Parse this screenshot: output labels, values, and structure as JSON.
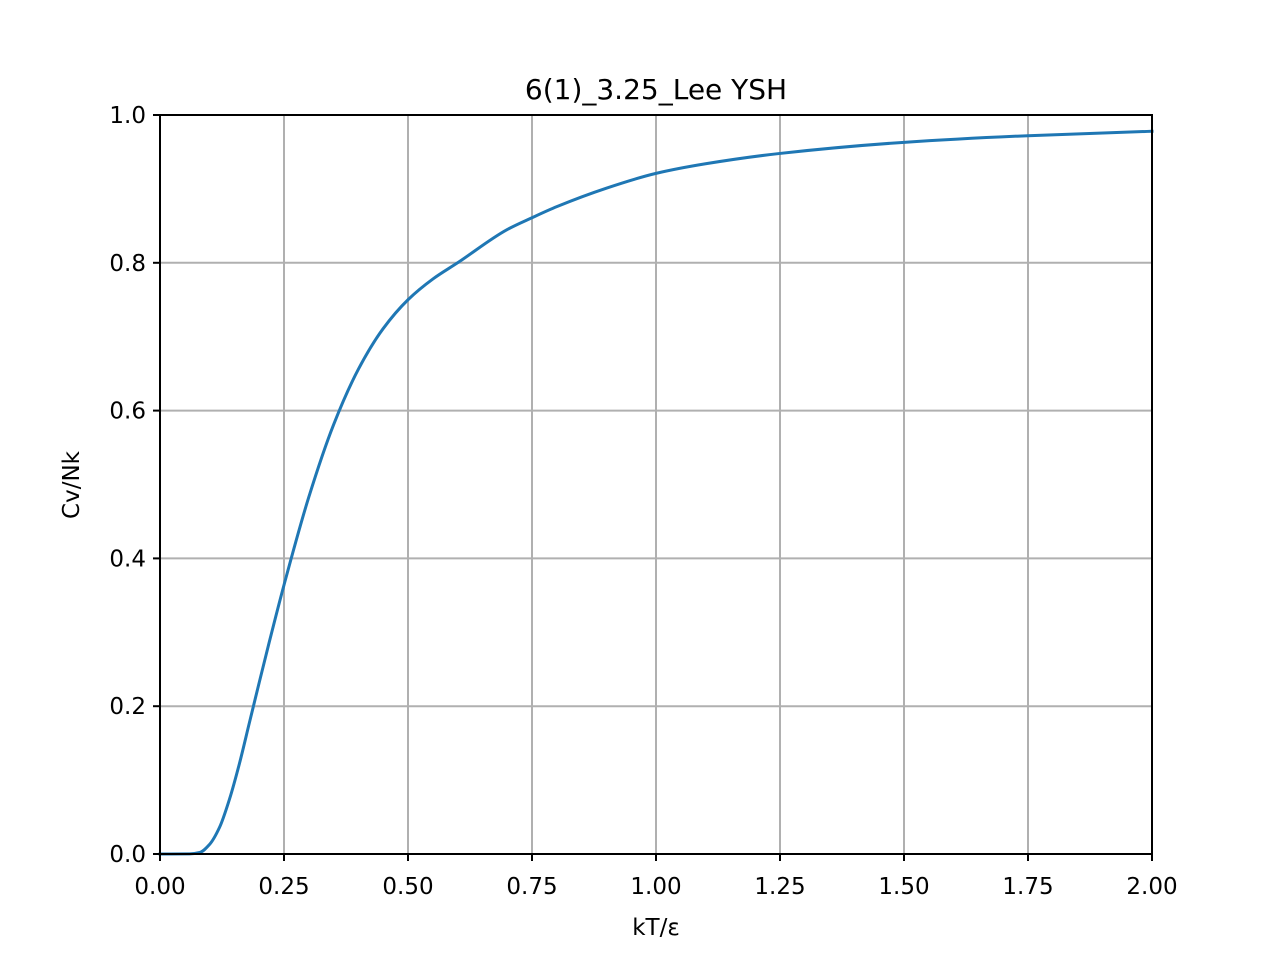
{
  "chart_data": {
    "type": "line",
    "title": "6(1)_3.25_Lee YSH",
    "xlabel": "kT/ε",
    "ylabel": "Cv/Nk",
    "xlim": [
      0.0,
      2.0
    ],
    "ylim": [
      0.0,
      1.0
    ],
    "grid": true,
    "x_ticks": [
      0.0,
      0.25,
      0.5,
      0.75,
      1.0,
      1.25,
      1.5,
      1.75,
      2.0
    ],
    "x_tick_labels": [
      "0.00",
      "0.25",
      "0.50",
      "0.75",
      "1.00",
      "1.25",
      "1.50",
      "1.75",
      "2.00"
    ],
    "y_ticks": [
      0.0,
      0.2,
      0.4,
      0.6,
      0.8,
      1.0
    ],
    "y_tick_labels": [
      "0.0",
      "0.2",
      "0.4",
      "0.6",
      "0.8",
      "1.0"
    ],
    "series": [
      {
        "color": "#1f77b4",
        "x": [
          0.0,
          0.06,
          0.08,
          0.1,
          0.12,
          0.14,
          0.16,
          0.18,
          0.2,
          0.22,
          0.25,
          0.3,
          0.35,
          0.4,
          0.45,
          0.5,
          0.55,
          0.6,
          0.7,
          0.75,
          0.8,
          0.9,
          1.0,
          1.1,
          1.25,
          1.5,
          1.75,
          2.0
        ],
        "y": [
          0.0,
          0.0002,
          0.002,
          0.013,
          0.036,
          0.074,
          0.122,
          0.177,
          0.232,
          0.286,
          0.364,
          0.483,
          0.581,
          0.656,
          0.711,
          0.75,
          0.778,
          0.8,
          0.845,
          0.861,
          0.876,
          0.901,
          0.921,
          0.934,
          0.948,
          0.963,
          0.972,
          0.978
        ]
      }
    ]
  }
}
